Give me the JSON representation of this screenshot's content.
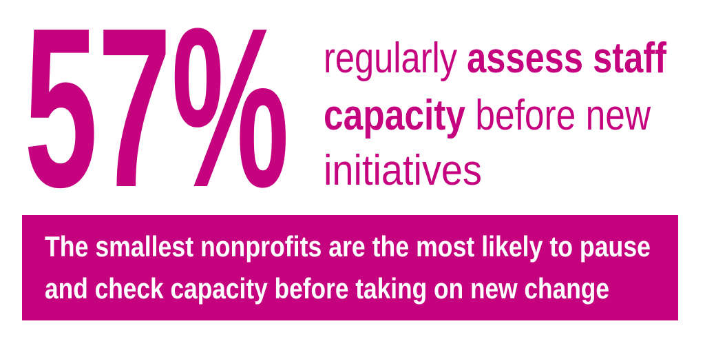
{
  "stat": "57%",
  "description": {
    "lines": [
      [
        {
          "text": "regularly ",
          "bold": false
        },
        {
          "text": "assess staff",
          "bold": true
        }
      ],
      [
        {
          "text": "capacity",
          "bold": true
        },
        {
          "text": " before new",
          "bold": false
        }
      ],
      [
        {
          "text": "initiatives",
          "bold": false
        }
      ]
    ]
  },
  "banner": {
    "lines": [
      "The smallest nonprofits are the most likely to pause",
      "and check capacity before taking on new change"
    ]
  }
}
